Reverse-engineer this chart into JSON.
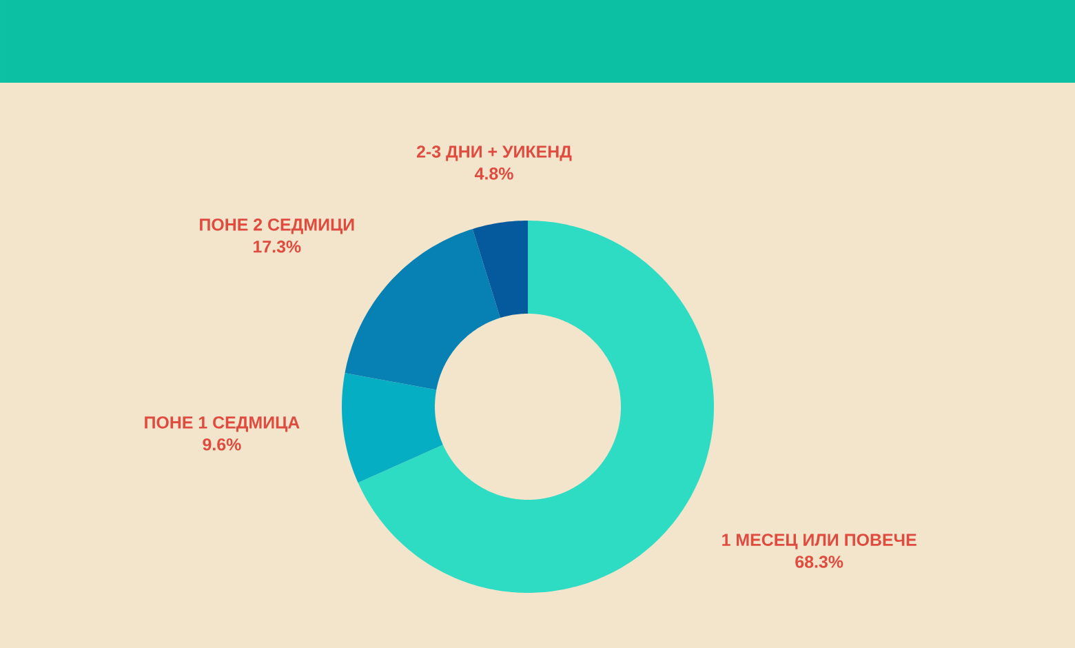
{
  "chart_data": {
    "type": "donut",
    "categories": [
      "1 МЕСЕЦ ИЛИ ПОВЕЧЕ",
      "ПОНЕ 1 СЕДМИЦА",
      "ПОНЕ 2 СЕДМИЦИ",
      "2-3 ДНИ + УИКЕНД"
    ],
    "values": [
      68.3,
      9.6,
      17.3,
      4.8
    ],
    "colors": [
      "#2edcc4",
      "#05aec3",
      "#0780b4",
      "#045a9c"
    ],
    "value_labels": [
      "68.3%",
      "9.6%",
      "17.3%",
      "4.8%"
    ]
  }
}
